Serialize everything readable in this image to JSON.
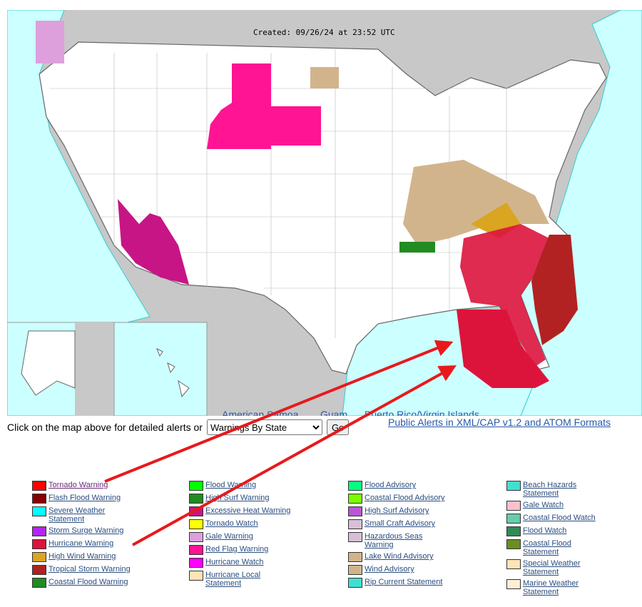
{
  "map": {
    "created": "Created: 09/26/24 at 23:52 UTC",
    "colors": {
      "land": "#ffffff",
      "ocean": "#ccffff",
      "foreign": "#c8c8c8",
      "marine_zone": "#33cccc"
    },
    "territories": [
      "American Samoa",
      "Guam",
      "Puerto Rico/Virgin Islands"
    ]
  },
  "controls": {
    "prompt": "Click on the map above for detailed alerts or",
    "select_value": "Warnings By State",
    "go_label": "Go",
    "xml_link": "Public Alerts in XML/CAP v1.2 and ATOM Formats"
  },
  "legend": [
    [
      {
        "label": "Tornado Warning",
        "color": "#ff0000"
      },
      {
        "label": "Flash Flood Warning",
        "color": "#8b0000"
      },
      {
        "label": "Severe Weather Statement",
        "color": "#00ffff"
      },
      {
        "label": "Storm Surge Warning",
        "color": "#b524f7"
      },
      {
        "label": "Hurricane Warning",
        "color": "#dc143c"
      },
      {
        "label": "High Wind Warning",
        "color": "#daa520"
      },
      {
        "label": "Tropical Storm Warning",
        "color": "#b22222"
      },
      {
        "label": "Coastal Flood Warning",
        "color": "#228b22"
      }
    ],
    [
      {
        "label": "Flood Warning",
        "color": "#00ff00"
      },
      {
        "label": "High Surf Warning",
        "color": "#228b22"
      },
      {
        "label": "Excessive Heat Warning",
        "color": "#c71585"
      },
      {
        "label": "Tornado Watch",
        "color": "#ffff00"
      },
      {
        "label": "Gale Warning",
        "color": "#dda0dd"
      },
      {
        "label": "Red Flag Warning",
        "color": "#ff1493"
      },
      {
        "label": "Hurricane Watch",
        "color": "#ff00ff"
      },
      {
        "label": "Hurricane Local Statement",
        "color": "#ffe4b5"
      }
    ],
    [
      {
        "label": "Flood Advisory",
        "color": "#00ff7f"
      },
      {
        "label": "Coastal Flood Advisory",
        "color": "#7cfc00"
      },
      {
        "label": "High Surf Advisory",
        "color": "#ba55d3"
      },
      {
        "label": "Small Craft Advisory",
        "color": "#d8bfd8"
      },
      {
        "label": "Hazardous Seas Warning",
        "color": "#d8bfd8"
      },
      {
        "label": "Lake Wind Advisory",
        "color": "#d2b48c"
      },
      {
        "label": "Wind Advisory",
        "color": "#d2b48c"
      },
      {
        "label": "Rip Current Statement",
        "color": "#40e0d0"
      }
    ],
    [
      {
        "label": "Beach Hazards Statement",
        "color": "#40e0d0"
      },
      {
        "label": "Gale Watch",
        "color": "#ffc0cb"
      },
      {
        "label": "Coastal Flood Watch",
        "color": "#66cdaa"
      },
      {
        "label": "Flood Watch",
        "color": "#2e8b57"
      },
      {
        "label": "Coastal Flood Statement",
        "color": "#6b8e23"
      },
      {
        "label": "Special Weather Statement",
        "color": "#ffe4b5"
      },
      {
        "label": "Marine Weather Statement",
        "color": "#ffefd5"
      }
    ]
  ],
  "annotations": {
    "arrow_color": "#e8191c"
  }
}
